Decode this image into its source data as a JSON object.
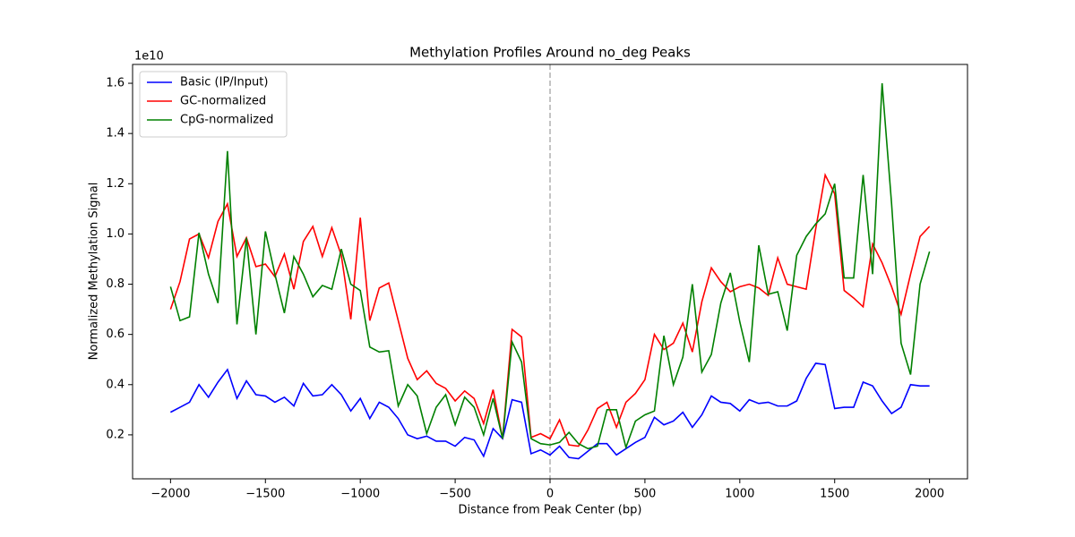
{
  "chart_data": {
    "type": "line",
    "title": "Methylation Profiles Around no_deg Peaks",
    "x_label": "Distance from Peak Center (bp)",
    "y_label": "Normalized Methylation Signal",
    "y_offset_label": "1e10",
    "x": [
      -2000,
      -1950,
      -1900,
      -1850,
      -1800,
      -1750,
      -1700,
      -1650,
      -1600,
      -1550,
      -1500,
      -1450,
      -1400,
      -1350,
      -1300,
      -1250,
      -1200,
      -1150,
      -1100,
      -1050,
      -1000,
      -950,
      -900,
      -850,
      -800,
      -750,
      -700,
      -650,
      -600,
      -550,
      -500,
      -450,
      -400,
      -350,
      -300,
      -250,
      -200,
      -150,
      -100,
      -50,
      0,
      50,
      100,
      150,
      200,
      250,
      300,
      350,
      400,
      450,
      500,
      550,
      600,
      650,
      700,
      750,
      800,
      850,
      900,
      950,
      1000,
      1050,
      1100,
      1150,
      1200,
      1250,
      1300,
      1350,
      1400,
      1450,
      1500,
      1550,
      1600,
      1650,
      1700,
      1750,
      1800,
      1850,
      1900,
      1950,
      2000
    ],
    "series": [
      {
        "name": "Basic (IP/Input)",
        "color": "#0000ff",
        "values": [
          0.29,
          0.31,
          0.33,
          0.4,
          0.35,
          0.41,
          0.46,
          0.345,
          0.415,
          0.36,
          0.355,
          0.33,
          0.35,
          0.315,
          0.405,
          0.355,
          0.36,
          0.4,
          0.36,
          0.295,
          0.345,
          0.265,
          0.33,
          0.31,
          0.265,
          0.2,
          0.185,
          0.195,
          0.175,
          0.175,
          0.155,
          0.19,
          0.18,
          0.115,
          0.225,
          0.185,
          0.34,
          0.33,
          0.125,
          0.14,
          0.12,
          0.155,
          0.11,
          0.105,
          0.135,
          0.165,
          0.165,
          0.12,
          0.145,
          0.17,
          0.19,
          0.27,
          0.24,
          0.255,
          0.29,
          0.23,
          0.28,
          0.355,
          0.33,
          0.325,
          0.295,
          0.34,
          0.325,
          0.33,
          0.315,
          0.315,
          0.335,
          0.425,
          0.485,
          0.48,
          0.305,
          0.31,
          0.31,
          0.41,
          0.395,
          0.335,
          0.285,
          0.31,
          0.4,
          0.395,
          0.395
        ]
      },
      {
        "name": "GC-normalized",
        "color": "#ff0000",
        "values": [
          0.7,
          0.81,
          0.98,
          1.0,
          0.905,
          1.05,
          1.12,
          0.91,
          0.985,
          0.87,
          0.88,
          0.83,
          0.92,
          0.78,
          0.97,
          1.03,
          0.91,
          1.025,
          0.915,
          0.66,
          1.065,
          0.655,
          0.785,
          0.805,
          0.655,
          0.505,
          0.42,
          0.455,
          0.405,
          0.385,
          0.335,
          0.375,
          0.345,
          0.245,
          0.38,
          0.185,
          0.62,
          0.59,
          0.19,
          0.205,
          0.185,
          0.26,
          0.16,
          0.155,
          0.22,
          0.305,
          0.33,
          0.23,
          0.33,
          0.365,
          0.42,
          0.6,
          0.54,
          0.565,
          0.645,
          0.53,
          0.73,
          0.865,
          0.81,
          0.77,
          0.79,
          0.8,
          0.785,
          0.755,
          0.905,
          0.8,
          0.79,
          0.78,
          1.02,
          1.235,
          1.16,
          0.775,
          0.745,
          0.71,
          0.96,
          0.885,
          0.79,
          0.68,
          0.84,
          0.99,
          1.03
        ]
      },
      {
        "name": "CpG-normalized",
        "color": "#008000",
        "values": [
          0.79,
          0.655,
          0.67,
          1.005,
          0.84,
          0.725,
          1.33,
          0.64,
          0.985,
          0.6,
          1.01,
          0.84,
          0.685,
          0.91,
          0.84,
          0.75,
          0.795,
          0.78,
          0.94,
          0.8,
          0.775,
          0.55,
          0.53,
          0.535,
          0.315,
          0.4,
          0.355,
          0.205,
          0.31,
          0.36,
          0.24,
          0.35,
          0.31,
          0.2,
          0.345,
          0.185,
          0.57,
          0.49,
          0.185,
          0.165,
          0.16,
          0.17,
          0.21,
          0.165,
          0.145,
          0.155,
          0.3,
          0.3,
          0.15,
          0.255,
          0.28,
          0.295,
          0.595,
          0.4,
          0.51,
          0.8,
          0.45,
          0.52,
          0.725,
          0.845,
          0.65,
          0.49,
          0.955,
          0.76,
          0.77,
          0.615,
          0.915,
          0.99,
          1.04,
          1.08,
          1.2,
          0.825,
          0.825,
          1.235,
          0.84,
          1.6,
          1.12,
          0.565,
          0.44,
          0.8,
          0.93
        ]
      }
    ],
    "vline": 0,
    "vline_color": "#b0b0b0",
    "xlim": [
      -2200,
      2200
    ],
    "ylim": [
      0.025,
      1.675
    ],
    "xticks": [
      {
        "value": -2000,
        "label": "−2000"
      },
      {
        "value": -1500,
        "label": "−1500"
      },
      {
        "value": -1000,
        "label": "−1000"
      },
      {
        "value": -500,
        "label": "−500"
      },
      0,
      500,
      1000,
      1500,
      2000
    ],
    "yticks": [
      0.2,
      0.4,
      0.6,
      0.8,
      {
        "value": 1,
        "label": "1.0"
      },
      1.2,
      1.4,
      1.6
    ],
    "legend": "upper left",
    "grid": false
  }
}
